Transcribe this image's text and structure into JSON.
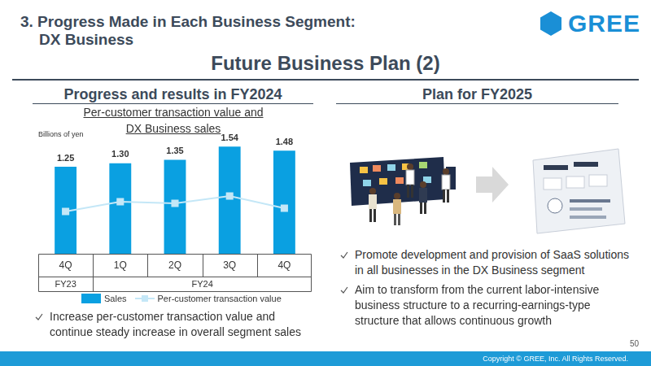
{
  "header": {
    "title_lines": [
      "3. Progress Made in Each Business Segment:",
      "DX Business"
    ],
    "logo": "GREE",
    "page_title": "Future Business Plan (2)"
  },
  "left_panel": {
    "heading": "Progress and results in FY2024",
    "bullets": [
      "Increase per-customer transaction value and continue steady increase in overall segment sales"
    ]
  },
  "right_panel": {
    "heading": "Plan for FY2025",
    "bullets": [
      "Promote development and provision of SaaS solutions in all businesses in the DX Business segment",
      "Aim to transform from the current labor-intensive business structure to a recurring-earnings-type structure that allows continuous growth"
    ]
  },
  "footer": {
    "copyright": "Copyright © GREE, Inc. All Rights Reserved.",
    "page_number": 50
  },
  "chart_data": {
    "type": "bar",
    "title": "Per-customer transaction value and DX Business sales",
    "ylabel": "Billions of yen",
    "categories": [
      "4Q",
      "1Q",
      "2Q",
      "3Q",
      "4Q"
    ],
    "category_groups": [
      {
        "label": "FY23",
        "span": 1
      },
      {
        "label": "FY24",
        "span": 4
      }
    ],
    "series": [
      {
        "name": "Sales",
        "type": "bar",
        "color": "#0aa0e1",
        "values": [
          1.25,
          1.3,
          1.35,
          1.54,
          1.48
        ],
        "value_labels": [
          "1.25",
          "1.30",
          "1.35",
          "1.54",
          "1.48"
        ],
        "data_labels": true
      },
      {
        "name": "Per-customer transaction value",
        "type": "line",
        "color": "#c4e7f7",
        "marker": "square",
        "axis": "y2",
        "values": [
          38,
          46.7,
          45.3,
          51.8,
          40.9
        ]
      }
    ],
    "ylim": [
      0,
      1.6
    ],
    "y2lim": [
      0,
      100
    ],
    "grid": false,
    "legend": "bottom",
    "tick_labels": "x"
  }
}
